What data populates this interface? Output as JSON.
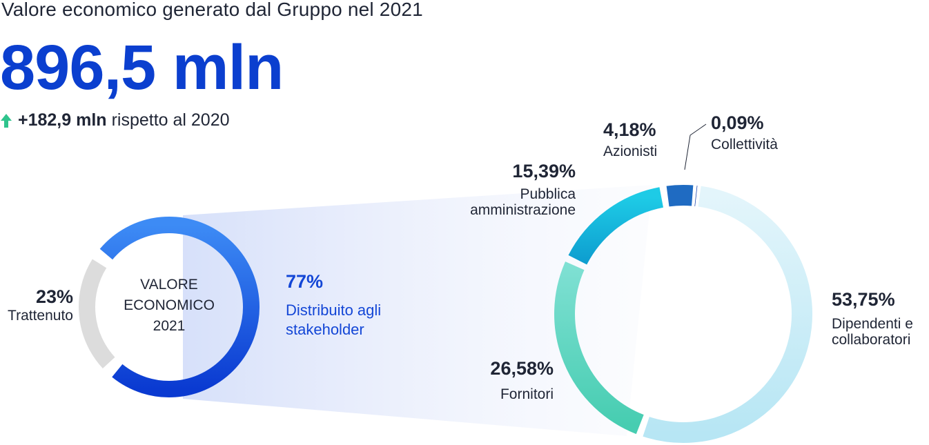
{
  "header": {
    "title": "Valore economico generato dal Gruppo nel 2021",
    "total": "896,5 mln",
    "delta_value": "+182,9 mln",
    "delta_text": "rispetto al 2020"
  },
  "center_label": [
    "VALORE",
    "ECONOMICO",
    "2021"
  ],
  "colors": {
    "accent": "#0b3fcf",
    "retained": "#dcdcdc",
    "arrow": "#2fc48d"
  },
  "chart_data": [
    {
      "type": "pie",
      "slices": [
        {
          "label": "Distribuito agli stakeholder",
          "value": 77,
          "display": "77%",
          "color": "#1f5ee8"
        },
        {
          "label": "Trattenuto",
          "value": 23,
          "display": "23%",
          "color": "#dcdcdc"
        }
      ]
    },
    {
      "type": "pie",
      "slices": [
        {
          "label": "Dipendenti e collaboratori",
          "value": 53.75,
          "display": "53,75%",
          "color": "#cdeef7"
        },
        {
          "label": "Fornitori",
          "value": 26.58,
          "display": "26,58%",
          "color": "#5ad7bf"
        },
        {
          "label": "Pubblica amministrazione",
          "value": 15.39,
          "display": "15,39%",
          "color": "#16b7e0"
        },
        {
          "label": "Azionisti",
          "value": 4.18,
          "display": "4,18%",
          "color": "#1f6bc2"
        },
        {
          "label": "Collettività",
          "value": 0.09,
          "display": "0,09%",
          "color": "#0c3aa8"
        }
      ]
    }
  ]
}
